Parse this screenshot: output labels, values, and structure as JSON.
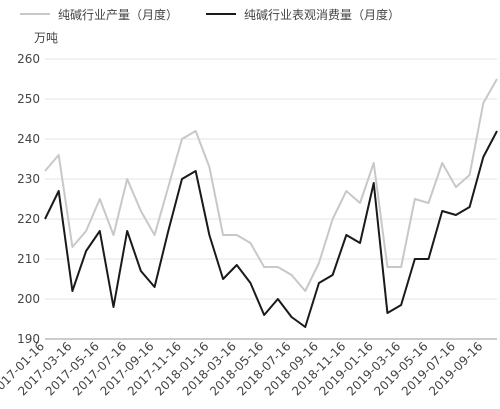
{
  "chart_data": {
    "type": "line",
    "y_unit": "万吨",
    "categories": [
      "2017-01-16",
      null,
      "2017-03-16",
      null,
      "2017-05-16",
      null,
      "2017-07-16",
      null,
      "2017-09-16",
      null,
      "2017-11-16",
      null,
      "2018-01-16",
      null,
      "2018-03-16",
      null,
      "2018-05-16",
      null,
      "2018-07-16",
      null,
      "2018-09-16",
      null,
      "2018-11-16",
      null,
      "2019-01-16",
      null,
      "2019-03-16",
      null,
      "2019-05-16",
      null,
      "2019-07-16",
      null,
      "2019-09-16",
      null
    ],
    "series": [
      {
        "name": "纯碱行业产量（月度）",
        "color": "#c8c8c8",
        "values": [
          232,
          236,
          213,
          217,
          225,
          216,
          230,
          222,
          216,
          228,
          240,
          242,
          233,
          216,
          216,
          214,
          208,
          208,
          206,
          202,
          209,
          220,
          227,
          224,
          234,
          208,
          208,
          225,
          224,
          234,
          228,
          231,
          249,
          255
        ]
      },
      {
        "name": "纯碱行业表观消费量（月度）",
        "color": "#1a1a1a",
        "values": [
          220,
          227,
          202,
          212,
          217,
          198,
          217,
          207,
          203,
          217,
          230,
          232,
          216,
          205,
          208.5,
          204,
          196,
          200,
          195.5,
          193,
          204,
          206,
          216,
          214,
          229,
          196.5,
          198.5,
          210,
          210,
          222,
          221,
          223,
          235.5,
          242
        ]
      }
    ],
    "ylim": [
      190,
      260
    ],
    "yticks": [
      190,
      200,
      210,
      220,
      230,
      240,
      250,
      260
    ],
    "grid": true
  }
}
